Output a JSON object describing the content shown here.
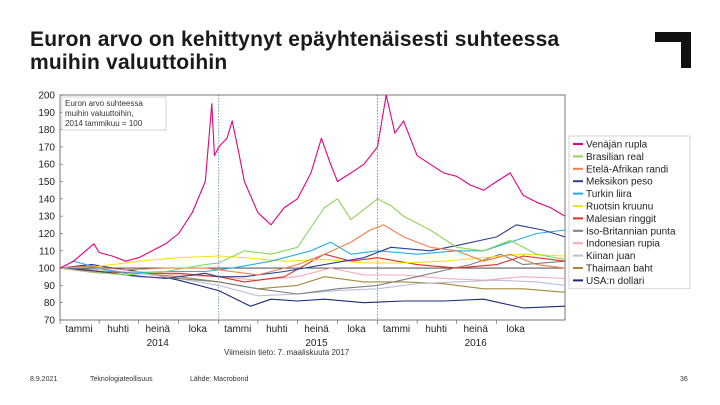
{
  "slide": {
    "title": "Euron arvo on kehittynyt epäyhtenäisesti suhteessa muihin valuuttoihin",
    "logo_icon": "corner-bracket-logo",
    "footer": {
      "date": "8.9.2021",
      "organization": "Teknologiateollisuus",
      "source": "Lähde: Macrobond",
      "page": "36"
    }
  },
  "chart_data": {
    "type": "line",
    "title": "",
    "annotation": [
      "Euron arvo suhteessa",
      "muihin valuuttoihin,",
      "2014 tammikuu = 100"
    ],
    "footnote": "Viimeisin tieto: 7. maaliskuuta 2017",
    "x_start": "2014-01-01",
    "x_end": "2017-03-07",
    "x_ticks": [
      {
        "date": "2014-01-01",
        "label": "tammi"
      },
      {
        "date": "2014-04-01",
        "label": "huhti"
      },
      {
        "date": "2014-07-01",
        "label": "heinä"
      },
      {
        "date": "2014-10-01",
        "label": "loka"
      },
      {
        "date": "2015-01-01",
        "label": "tammi"
      },
      {
        "date": "2015-04-01",
        "label": "huhti"
      },
      {
        "date": "2015-07-01",
        "label": "heinä"
      },
      {
        "date": "2015-10-01",
        "label": "loka"
      },
      {
        "date": "2016-01-01",
        "label": "tammi"
      },
      {
        "date": "2016-04-01",
        "label": "huhti"
      },
      {
        "date": "2016-07-01",
        "label": "heinä"
      },
      {
        "date": "2016-10-01",
        "label": "loka"
      }
    ],
    "year_labels": [
      {
        "date": "2014-07-01",
        "label": "2014"
      },
      {
        "date": "2015-07-01",
        "label": "2015"
      },
      {
        "date": "2016-07-01",
        "label": "2016"
      }
    ],
    "year_separators": [
      "2015-01-01",
      "2016-01-01"
    ],
    "ylim": [
      70,
      200
    ],
    "y_ticks": [
      70,
      80,
      90,
      100,
      110,
      120,
      130,
      140,
      150,
      160,
      170,
      180,
      190,
      200
    ],
    "reference_line": 100,
    "grid": false,
    "legend_position": "right",
    "series": [
      {
        "name": "Venäjän rupla",
        "color": "#e6007e",
        "points": [
          [
            "2014-01-01",
            100
          ],
          [
            "2014-02-01",
            104
          ],
          [
            "2014-03-01",
            110
          ],
          [
            "2014-03-20",
            114
          ],
          [
            "2014-04-01",
            109
          ],
          [
            "2014-05-01",
            107
          ],
          [
            "2014-06-01",
            104
          ],
          [
            "2014-07-01",
            106
          ],
          [
            "2014-08-01",
            110
          ],
          [
            "2014-09-01",
            114
          ],
          [
            "2014-10-01",
            120
          ],
          [
            "2014-11-01",
            132
          ],
          [
            "2014-12-01",
            150
          ],
          [
            "2014-12-16",
            195
          ],
          [
            "2014-12-22",
            165
          ],
          [
            "2015-01-01",
            170
          ],
          [
            "2015-01-20",
            175
          ],
          [
            "2015-02-01",
            185
          ],
          [
            "2015-02-15",
            168
          ],
          [
            "2015-03-01",
            150
          ],
          [
            "2015-04-01",
            132
          ],
          [
            "2015-05-01",
            125
          ],
          [
            "2015-06-01",
            135
          ],
          [
            "2015-07-01",
            140
          ],
          [
            "2015-08-01",
            155
          ],
          [
            "2015-08-25",
            175
          ],
          [
            "2015-09-15",
            160
          ],
          [
            "2015-10-01",
            150
          ],
          [
            "2015-11-01",
            155
          ],
          [
            "2015-12-01",
            160
          ],
          [
            "2016-01-01",
            170
          ],
          [
            "2016-01-21",
            200
          ],
          [
            "2016-02-10",
            178
          ],
          [
            "2016-03-01",
            185
          ],
          [
            "2016-04-01",
            165
          ],
          [
            "2016-05-01",
            160
          ],
          [
            "2016-06-01",
            155
          ],
          [
            "2016-07-01",
            153
          ],
          [
            "2016-08-01",
            148
          ],
          [
            "2016-09-01",
            145
          ],
          [
            "2016-10-01",
            150
          ],
          [
            "2016-11-01",
            155
          ],
          [
            "2016-12-01",
            142
          ],
          [
            "2017-01-01",
            138
          ],
          [
            "2017-02-01",
            135
          ],
          [
            "2017-03-07",
            130
          ]
        ]
      },
      {
        "name": "Brasilian real",
        "color": "#8fd45a",
        "points": [
          [
            "2014-01-01",
            100
          ],
          [
            "2014-03-01",
            98
          ],
          [
            "2014-06-01",
            96
          ],
          [
            "2014-09-01",
            98
          ],
          [
            "2014-12-01",
            102
          ],
          [
            "2015-01-01",
            103
          ],
          [
            "2015-03-01",
            110
          ],
          [
            "2015-05-01",
            108
          ],
          [
            "2015-07-01",
            112
          ],
          [
            "2015-09-01",
            135
          ],
          [
            "2015-10-01",
            140
          ],
          [
            "2015-11-01",
            128
          ],
          [
            "2016-01-01",
            140
          ],
          [
            "2016-02-01",
            136
          ],
          [
            "2016-03-01",
            130
          ],
          [
            "2016-05-01",
            122
          ],
          [
            "2016-07-01",
            112
          ],
          [
            "2016-09-01",
            110
          ],
          [
            "2016-11-01",
            116
          ],
          [
            "2017-01-01",
            108
          ],
          [
            "2017-03-07",
            105
          ]
        ]
      },
      {
        "name": "Etelä-Afrikan randi",
        "color": "#f07f4a",
        "points": [
          [
            "2014-01-01",
            100
          ],
          [
            "2014-03-01",
            101
          ],
          [
            "2014-06-01",
            99
          ],
          [
            "2014-09-01",
            100
          ],
          [
            "2014-12-01",
            100
          ],
          [
            "2015-01-01",
            99
          ],
          [
            "2015-04-01",
            96
          ],
          [
            "2015-07-01",
            102
          ],
          [
            "2015-09-01",
            108
          ],
          [
            "2015-11-01",
            115
          ],
          [
            "2015-12-15",
            122
          ],
          [
            "2016-01-15",
            125
          ],
          [
            "2016-03-01",
            118
          ],
          [
            "2016-05-01",
            112
          ],
          [
            "2016-07-01",
            110
          ],
          [
            "2016-09-01",
            104
          ],
          [
            "2016-11-01",
            108
          ],
          [
            "2017-01-01",
            102
          ],
          [
            "2017-03-07",
            100
          ]
        ]
      },
      {
        "name": "Meksikon peso",
        "color": "#2e3e93",
        "points": [
          [
            "2014-01-01",
            100
          ],
          [
            "2014-03-01",
            99
          ],
          [
            "2014-06-01",
            96
          ],
          [
            "2014-09-01",
            94
          ],
          [
            "2014-12-01",
            97
          ],
          [
            "2015-01-01",
            95
          ],
          [
            "2015-03-01",
            95
          ],
          [
            "2015-06-01",
            98
          ],
          [
            "2015-09-01",
            102
          ],
          [
            "2015-12-01",
            106
          ],
          [
            "2016-02-01",
            112
          ],
          [
            "2016-05-01",
            110
          ],
          [
            "2016-07-01",
            113
          ],
          [
            "2016-10-01",
            118
          ],
          [
            "2016-11-15",
            125
          ],
          [
            "2017-01-15",
            122
          ],
          [
            "2017-03-07",
            118
          ]
        ]
      },
      {
        "name": "Turkin liira",
        "color": "#22aee8",
        "points": [
          [
            "2014-01-01",
            100
          ],
          [
            "2014-02-01",
            104
          ],
          [
            "2014-04-01",
            100
          ],
          [
            "2014-06-01",
            97
          ],
          [
            "2014-09-01",
            98
          ],
          [
            "2014-12-01",
            98
          ],
          [
            "2015-02-01",
            100
          ],
          [
            "2015-05-01",
            104
          ],
          [
            "2015-08-01",
            110
          ],
          [
            "2015-09-15",
            115
          ],
          [
            "2015-11-01",
            108
          ],
          [
            "2016-01-01",
            110
          ],
          [
            "2016-04-01",
            108
          ],
          [
            "2016-07-01",
            110
          ],
          [
            "2016-09-01",
            110
          ],
          [
            "2016-11-01",
            115
          ],
          [
            "2017-01-01",
            120
          ],
          [
            "2017-03-07",
            122
          ]
        ]
      },
      {
        "name": "Ruotsin kruunu",
        "color": "#f5e11e",
        "points": [
          [
            "2014-01-01",
            100
          ],
          [
            "2014-04-01",
            101
          ],
          [
            "2014-07-01",
            104
          ],
          [
            "2014-10-01",
            106
          ],
          [
            "2015-01-01",
            107
          ],
          [
            "2015-03-01",
            106
          ],
          [
            "2015-06-01",
            104
          ],
          [
            "2015-09-01",
            105
          ],
          [
            "2015-12-01",
            103
          ],
          [
            "2016-03-01",
            103
          ],
          [
            "2016-06-01",
            104
          ],
          [
            "2016-09-01",
            106
          ],
          [
            "2016-12-01",
            108
          ],
          [
            "2017-03-07",
            107
          ]
        ]
      },
      {
        "name": "Malesian ringgit",
        "color": "#d93025",
        "points": [
          [
            "2014-01-01",
            100
          ],
          [
            "2014-04-01",
            98
          ],
          [
            "2014-07-01",
            97
          ],
          [
            "2014-10-01",
            97
          ],
          [
            "2015-01-01",
            95
          ],
          [
            "2015-03-01",
            92
          ],
          [
            "2015-06-01",
            95
          ],
          [
            "2015-09-01",
            108
          ],
          [
            "2015-11-01",
            104
          ],
          [
            "2016-01-01",
            106
          ],
          [
            "2016-04-01",
            102
          ],
          [
            "2016-07-01",
            100
          ],
          [
            "2016-10-01",
            102
          ],
          [
            "2016-12-01",
            107
          ],
          [
            "2017-03-07",
            104
          ]
        ]
      },
      {
        "name": "Iso-Britannian punta",
        "color": "#7f7f7f",
        "points": [
          [
            "2014-01-01",
            100
          ],
          [
            "2014-04-01",
            98
          ],
          [
            "2014-07-01",
            95
          ],
          [
            "2014-10-01",
            94
          ],
          [
            "2015-01-01",
            92
          ],
          [
            "2015-04-01",
            88
          ],
          [
            "2015-07-01",
            85
          ],
          [
            "2015-10-01",
            88
          ],
          [
            "2016-01-01",
            90
          ],
          [
            "2016-04-01",
            95
          ],
          [
            "2016-06-25",
            100
          ],
          [
            "2016-08-01",
            102
          ],
          [
            "2016-10-10",
            108
          ],
          [
            "2016-12-01",
            102
          ],
          [
            "2017-03-07",
            104
          ]
        ]
      },
      {
        "name": "Indonesian rupia",
        "color": "#f6a8b8",
        "points": [
          [
            "2014-01-01",
            100
          ],
          [
            "2014-04-01",
            97
          ],
          [
            "2014-07-01",
            98
          ],
          [
            "2014-10-01",
            96
          ],
          [
            "2015-01-01",
            95
          ],
          [
            "2015-04-01",
            93
          ],
          [
            "2015-07-01",
            95
          ],
          [
            "2015-09-15",
            100
          ],
          [
            "2015-12-01",
            96
          ],
          [
            "2016-03-01",
            96
          ],
          [
            "2016-06-01",
            94
          ],
          [
            "2016-09-01",
            93
          ],
          [
            "2016-12-01",
            95
          ],
          [
            "2017-03-07",
            94
          ]
        ]
      },
      {
        "name": "Kiinan juan",
        "color": "#b8bfd8",
        "points": [
          [
            "2014-01-01",
            100
          ],
          [
            "2014-04-01",
            99
          ],
          [
            "2014-07-01",
            97
          ],
          [
            "2014-10-01",
            94
          ],
          [
            "2015-01-01",
            90
          ],
          [
            "2015-04-01",
            84
          ],
          [
            "2015-07-01",
            85
          ],
          [
            "2015-10-01",
            87
          ],
          [
            "2016-01-01",
            88
          ],
          [
            "2016-04-01",
            91
          ],
          [
            "2016-07-01",
            92
          ],
          [
            "2016-10-01",
            93
          ],
          [
            "2017-01-01",
            92
          ],
          [
            "2017-03-07",
            90
          ]
        ]
      },
      {
        "name": "Thaimaan baht",
        "color": "#a8883a",
        "points": [
          [
            "2014-01-01",
            100
          ],
          [
            "2014-04-01",
            99
          ],
          [
            "2014-07-01",
            97
          ],
          [
            "2014-10-01",
            95
          ],
          [
            "2015-01-01",
            92
          ],
          [
            "2015-04-01",
            88
          ],
          [
            "2015-07-01",
            90
          ],
          [
            "2015-09-01",
            95
          ],
          [
            "2015-12-01",
            92
          ],
          [
            "2016-03-01",
            92
          ],
          [
            "2016-06-01",
            91
          ],
          [
            "2016-09-01",
            88
          ],
          [
            "2016-12-01",
            88
          ],
          [
            "2017-03-07",
            86
          ]
        ]
      },
      {
        "name": "USA:n dollari",
        "color": "#1b2a7a",
        "points": [
          [
            "2014-01-01",
            100
          ],
          [
            "2014-03-15",
            102
          ],
          [
            "2014-05-01",
            100
          ],
          [
            "2014-07-01",
            98
          ],
          [
            "2014-10-01",
            93
          ],
          [
            "2015-01-01",
            87
          ],
          [
            "2015-03-15",
            78
          ],
          [
            "2015-05-01",
            82
          ],
          [
            "2015-07-01",
            81
          ],
          [
            "2015-09-01",
            82
          ],
          [
            "2015-12-01",
            80
          ],
          [
            "2016-03-01",
            81
          ],
          [
            "2016-06-01",
            81
          ],
          [
            "2016-09-01",
            82
          ],
          [
            "2016-12-01",
            77
          ],
          [
            "2017-03-07",
            78
          ]
        ]
      }
    ]
  }
}
